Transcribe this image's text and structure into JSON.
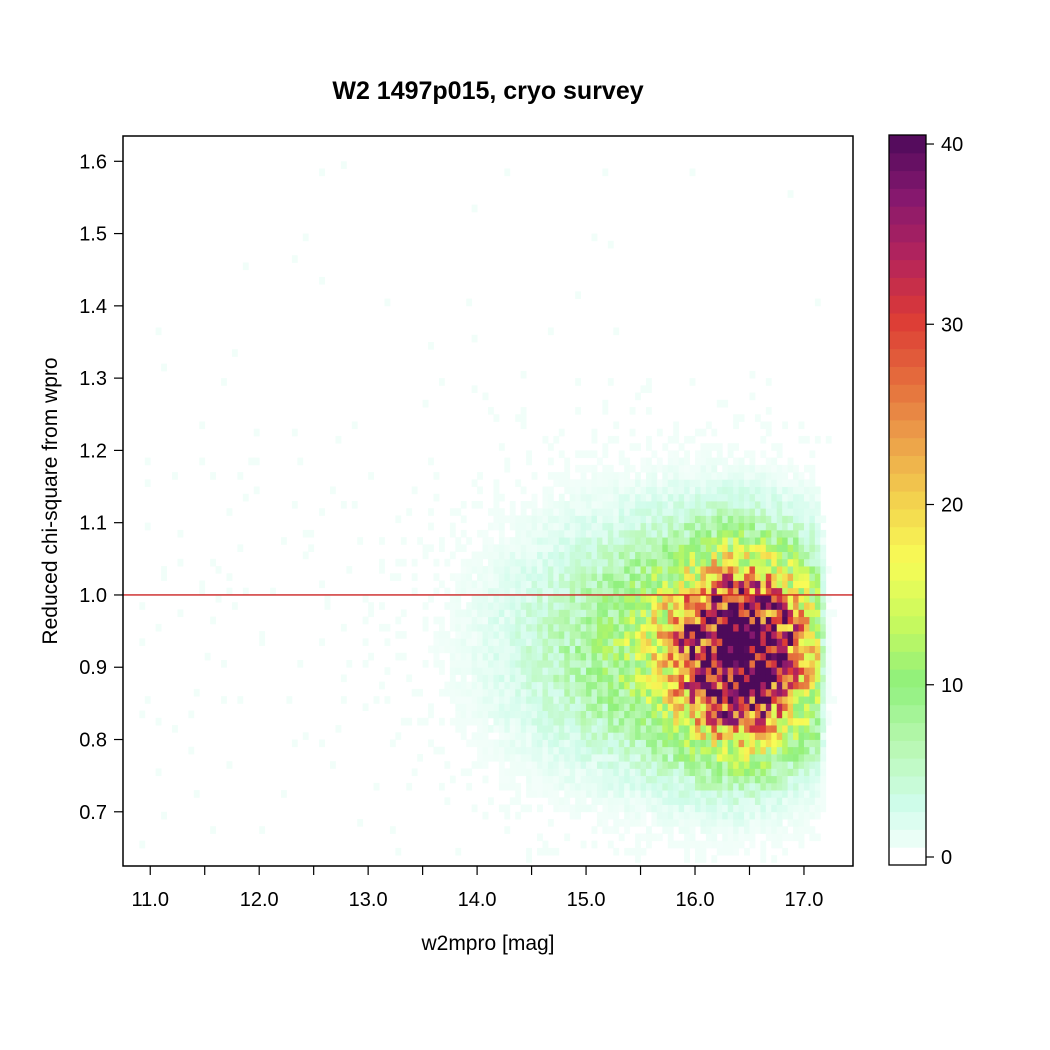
{
  "chart_data": {
    "type": "heatmap",
    "title": "W2 1497p015, cryo survey",
    "xlabel": "w2mpro [mag]",
    "ylabel": "Reduced chi-square from wpro",
    "xlim": [
      10.75,
      17.45
    ],
    "ylim": [
      0.625,
      1.635
    ],
    "x_ticks": [
      11.0,
      12.0,
      13.0,
      14.0,
      15.0,
      16.0,
      17.0
    ],
    "x_tick_labels": [
      "11.0",
      "12.0",
      "13.0",
      "14.0",
      "15.0",
      "16.0",
      "17.0"
    ],
    "x_minor_ticks": [
      11.5,
      12.5,
      13.5,
      14.5,
      15.5,
      16.5
    ],
    "y_ticks": [
      0.7,
      0.8,
      0.9,
      1.0,
      1.1,
      1.2,
      1.3,
      1.4,
      1.5,
      1.6
    ],
    "y_tick_labels": [
      "0.7",
      "0.8",
      "0.9",
      "1.0",
      "1.1",
      "1.2",
      "1.3",
      "1.4",
      "1.5",
      "1.6"
    ],
    "reference_line": {
      "y": 1.0,
      "color": "#cc2222"
    },
    "density": {
      "peak": {
        "x": 16.45,
        "y": 0.92,
        "sigma_x": 0.42,
        "sigma_y": 0.085,
        "count": 38
      },
      "spread": {
        "x": 15.9,
        "y": 0.93,
        "sigma_x": 0.95,
        "sigma_y": 0.11,
        "count": 12
      },
      "x_cutoff": 17.15,
      "outlier_rate": 0.06
    },
    "colorbar": {
      "min": 0,
      "max": 40.5,
      "ticks": [
        0,
        10,
        20,
        30,
        40
      ],
      "tick_labels": [
        "0",
        "10",
        "20",
        "30",
        "40"
      ],
      "colors": [
        "#ffffff",
        "#cffcea",
        "#b8f8b0",
        "#8ff07c",
        "#c8f95e",
        "#f8fc56",
        "#f3d24e",
        "#eca04a",
        "#e46b3c",
        "#dc3a36",
        "#b3245c",
        "#85186e",
        "#4d0a5a"
      ]
    }
  }
}
